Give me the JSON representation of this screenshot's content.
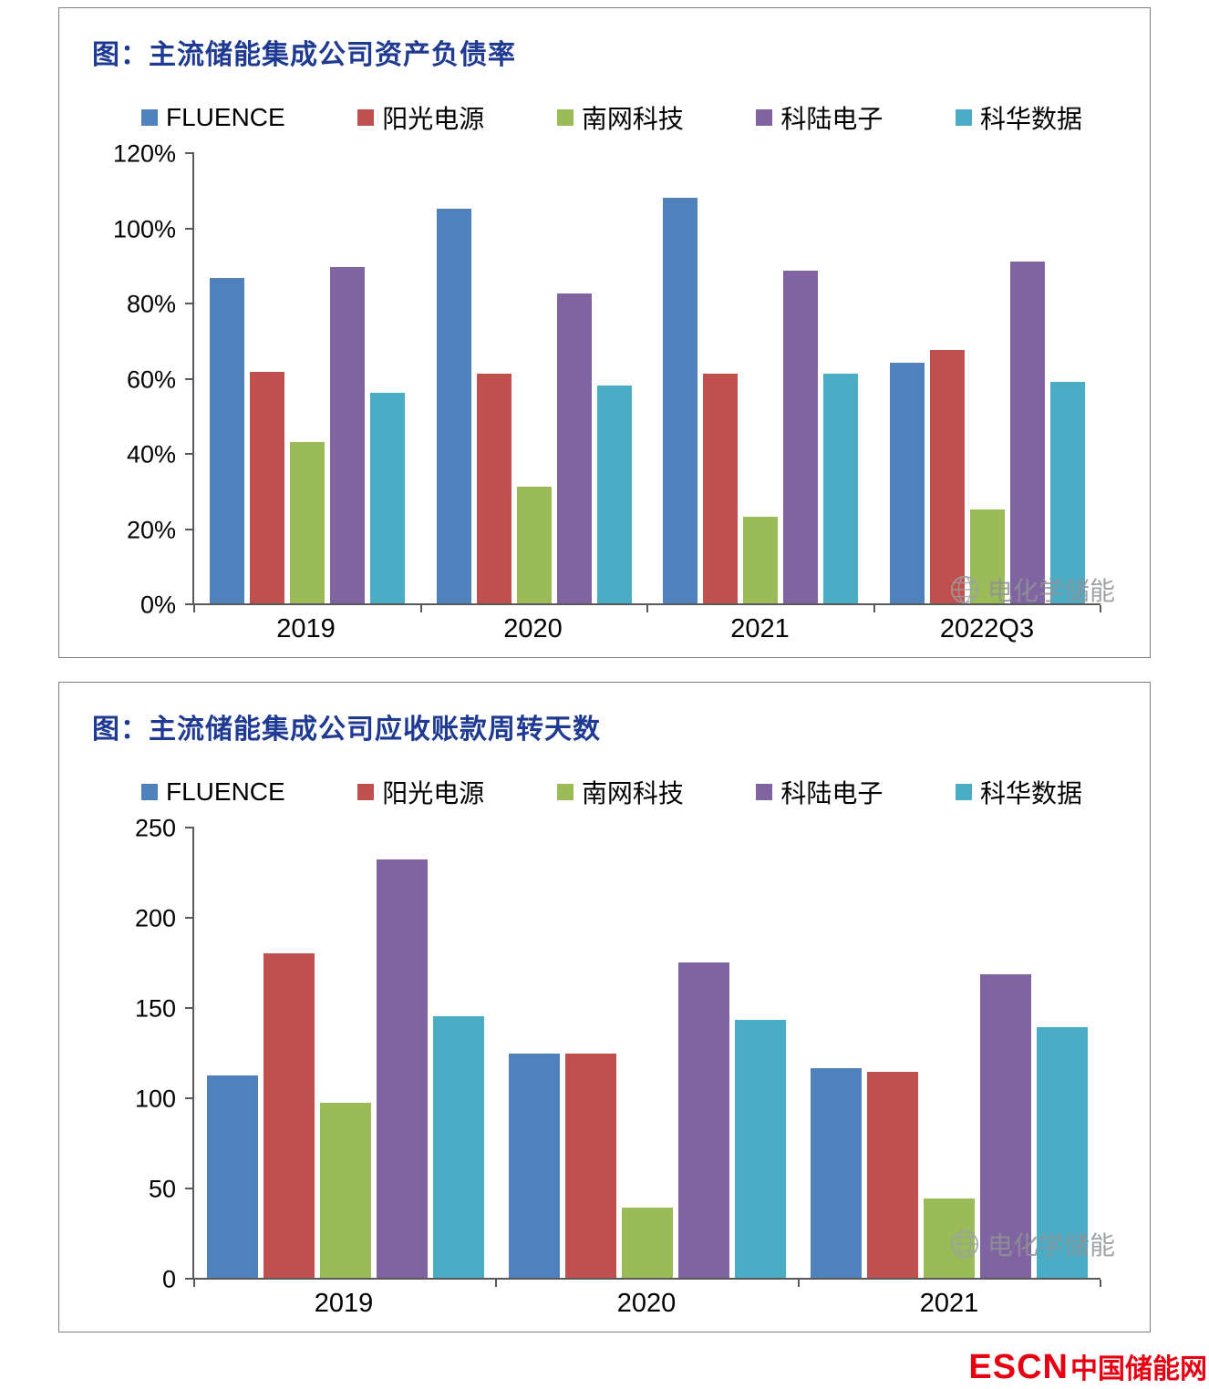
{
  "watermark": {
    "icon": "globe-icon",
    "text": "电化学储能"
  },
  "footer_logo": {
    "mark": "ESCN",
    "site": "中国储能网",
    "color": "#E60012"
  },
  "colors": {
    "title_blue": "#1F3A93",
    "axis_gray": "#595959",
    "series": {
      "FLUENCE": "#4F81BD",
      "阳光电源": "#C0504D",
      "南网科技": "#9BBB59",
      "科陆电子": "#8064A2",
      "科华数据": "#4BACC6"
    }
  },
  "chart_data": [
    {
      "type": "bar",
      "title": "图：主流储能集成公司资产负债率",
      "categories": [
        "2019",
        "2020",
        "2021",
        "2022Q3"
      ],
      "series": [
        {
          "name": "FLUENCE",
          "color": "#4F81BD",
          "values": [
            86.5,
            105,
            108,
            64
          ]
        },
        {
          "name": "阳光电源",
          "color": "#C0504D",
          "values": [
            61.5,
            61,
            61,
            67.5
          ]
        },
        {
          "name": "南网科技",
          "color": "#9BBB59",
          "values": [
            43,
            31,
            23,
            25
          ]
        },
        {
          "name": "科陆电子",
          "color": "#8064A2",
          "values": [
            89.5,
            82.5,
            88.5,
            91
          ]
        },
        {
          "name": "科华数据",
          "color": "#4BACC6",
          "values": [
            56,
            58,
            61,
            59
          ]
        }
      ],
      "xlabel": "",
      "ylabel": "",
      "ylim": [
        0,
        120
      ],
      "yticks": [
        "0%",
        "20%",
        "40%",
        "60%",
        "80%",
        "100%",
        "120%"
      ],
      "grid": false,
      "legend_position": "top"
    },
    {
      "type": "bar",
      "title": "图：主流储能集成公司应收账款周转天数",
      "categories": [
        "2019",
        "2020",
        "2021"
      ],
      "series": [
        {
          "name": "FLUENCE",
          "color": "#4F81BD",
          "values": [
            112,
            124,
            116
          ]
        },
        {
          "name": "阳光电源",
          "color": "#C0504D",
          "values": [
            180,
            124,
            114
          ]
        },
        {
          "name": "南网科技",
          "color": "#9BBB59",
          "values": [
            97,
            39,
            44
          ]
        },
        {
          "name": "科陆电子",
          "color": "#8064A2",
          "values": [
            232,
            175,
            168
          ]
        },
        {
          "name": "科华数据",
          "color": "#4BACC6",
          "values": [
            145,
            143,
            139
          ]
        }
      ],
      "xlabel": "",
      "ylabel": "",
      "ylim": [
        0,
        250
      ],
      "yticks": [
        "0",
        "50",
        "100",
        "150",
        "200",
        "250"
      ],
      "grid": false,
      "legend_position": "top"
    }
  ]
}
